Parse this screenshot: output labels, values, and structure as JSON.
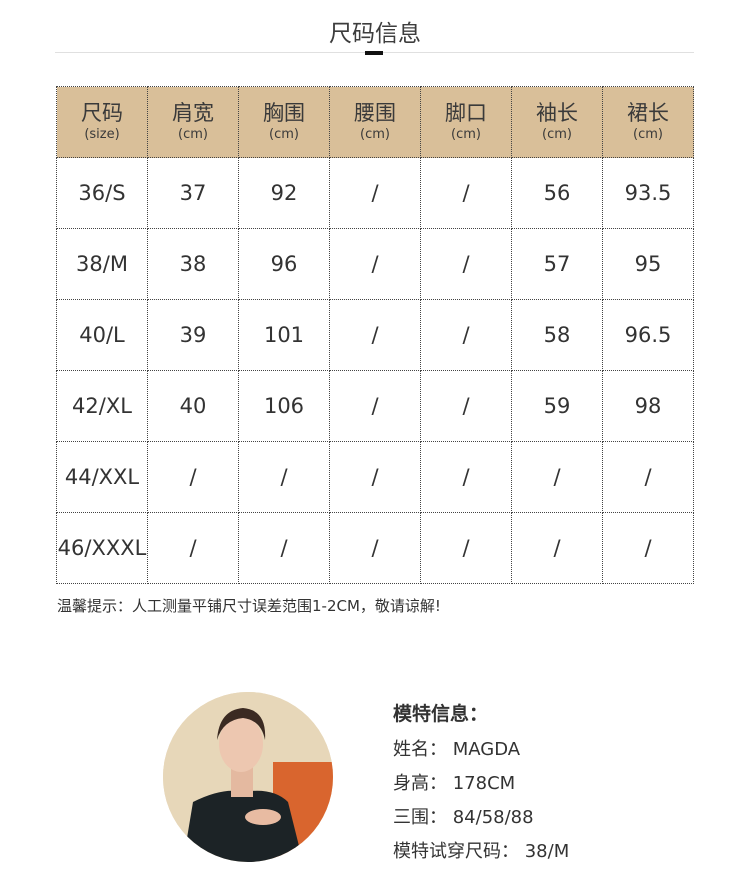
{
  "title": "尺码信息",
  "table": {
    "headers": [
      {
        "zh": "尺码",
        "unit": "(size)"
      },
      {
        "zh": "肩宽",
        "unit": "(cm)"
      },
      {
        "zh": "胸围",
        "unit": "(cm)"
      },
      {
        "zh": "腰围",
        "unit": "(cm)"
      },
      {
        "zh": "脚口",
        "unit": "(cm)"
      },
      {
        "zh": "袖长",
        "unit": "(cm)"
      },
      {
        "zh": "裙长",
        "unit": "(cm)"
      }
    ],
    "rows": [
      [
        "36/S",
        "37",
        "92",
        "/",
        "/",
        "56",
        "93.5"
      ],
      [
        "38/M",
        "38",
        "96",
        "/",
        "/",
        "57",
        "95"
      ],
      [
        "40/L",
        "39",
        "101",
        "/",
        "/",
        "58",
        "96.5"
      ],
      [
        "42/XL",
        "40",
        "106",
        "/",
        "/",
        "59",
        "98"
      ],
      [
        "44/XXL",
        "/",
        "/",
        "/",
        "/",
        "/",
        "/"
      ],
      [
        "46/XXXL",
        "/",
        "/",
        "/",
        "/",
        "/",
        "/"
      ]
    ],
    "header_color": "#d9bf99"
  },
  "note": "温馨提示：人工测量平铺尺寸误差范围1-2CM，敬请谅解!",
  "model": {
    "heading": "模特信息：",
    "lines": [
      "姓名：  MAGDA",
      "身高：  178CM",
      "三围：  84/58/88",
      "模特试穿尺码：  38/M"
    ]
  }
}
